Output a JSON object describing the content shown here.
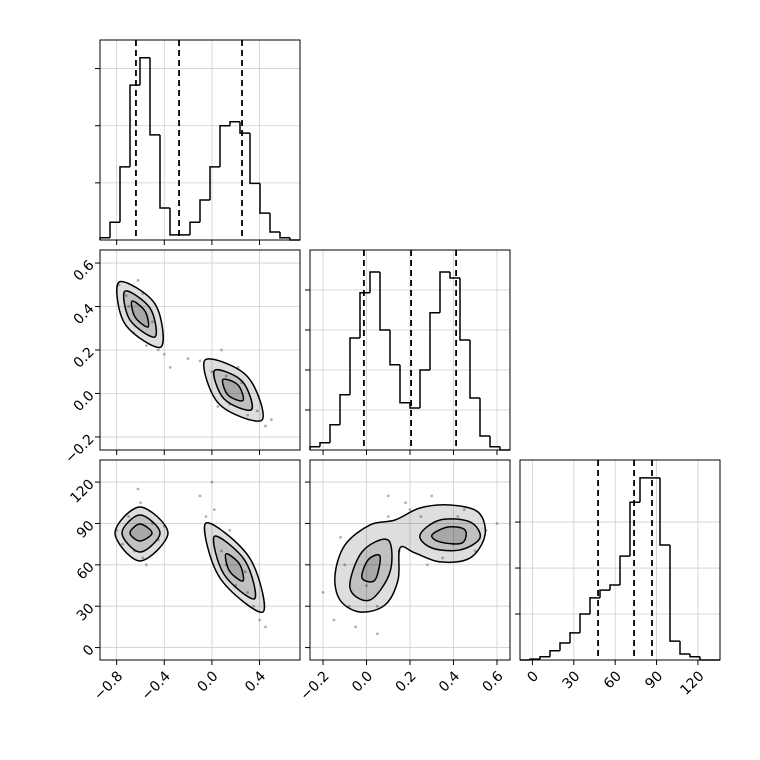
{
  "chart_data": [
    {
      "type": "histogram",
      "color": "#000000",
      "grid": true,
      "show_xtick_labels": false,
      "show_ytick_labels": false,
      "xlim": [
        -0.94,
        0.74
      ],
      "ylim": [
        0,
        3.5
      ],
      "xticks": [
        -0.8,
        -0.4,
        0,
        0.4
      ],
      "yticks": [
        1,
        2,
        3
      ],
      "bins": [
        -0.94,
        -0.856,
        -0.772,
        -0.688,
        -0.604,
        -0.52,
        -0.436,
        -0.352,
        -0.268,
        -0.184,
        -0.1,
        -0.016,
        0.068,
        0.152,
        0.236,
        0.32,
        0.404,
        0.488,
        0.572,
        0.656,
        0.74
      ],
      "counts": [
        0.04,
        0.31,
        1.28,
        2.71,
        3.19,
        1.84,
        0.56,
        0.09,
        0.09,
        0.31,
        0.7,
        1.28,
        2.0,
        2.07,
        1.87,
        0.99,
        0.47,
        0.14,
        0.04,
        0.0
      ],
      "quantiles": [
        -0.638,
        -0.276,
        0.253
      ]
    },
    {
      "type": "scatter",
      "color": "#000000",
      "grid": true,
      "show_xtick_labels": false,
      "show_ytick_labels": true,
      "xlim": [
        -0.94,
        0.74
      ],
      "ylim": [
        -0.26,
        0.66
      ],
      "xticks": [
        -0.8,
        -0.4,
        0,
        0.4
      ],
      "yticks": [
        {
          "value": -0.2,
          "label": "−0.2"
        },
        {
          "value": 0,
          "label": "0.0"
        },
        0.2,
        0.4,
        0.6
      ],
      "x": [
        -0.78,
        -0.72,
        -0.66,
        -0.62,
        -0.55,
        -0.5,
        -0.45,
        -0.7,
        -0.58,
        -0.4,
        -0.35,
        -0.1,
        0.0,
        0.08,
        0.15,
        0.22,
        0.3,
        0.38,
        0.45,
        0.05,
        0.25,
        0.5,
        -0.2,
        0.12
      ],
      "y": [
        0.5,
        0.45,
        0.28,
        0.52,
        0.22,
        0.33,
        0.2,
        0.4,
        0.46,
        0.18,
        0.12,
        0.15,
        0.1,
        0.2,
        -0.05,
        0.12,
        -0.1,
        -0.08,
        -0.15,
        -0.06,
        0.05,
        -0.12,
        0.16,
        0.08
      ],
      "contours": [
        {
          "x": [
            -0.78,
            -0.478,
            -0.428,
            -0.73
          ],
          "y": [
            0.513,
            0.412,
            0.214,
            0.32
          ]
        },
        {
          "x": [
            -0.73,
            -0.52,
            -0.478,
            -0.688
          ],
          "y": [
            0.471,
            0.393,
            0.26,
            0.338
          ]
        },
        {
          "x": [
            -0.671,
            -0.562,
            -0.537,
            -0.646
          ],
          "y": [
            0.425,
            0.379,
            0.306,
            0.352
          ]
        },
        {
          "x": [
            -0.058,
            0.295,
            0.421,
            0.06
          ],
          "y": [
            0.154,
            0.08,
            -0.122,
            -0.048
          ]
        },
        {
          "x": [
            0.022,
            0.253,
            0.333,
            0.102
          ],
          "y": [
            0.106,
            0.057,
            -0.074,
            -0.025
          ]
        },
        {
          "x": [
            0.093,
            0.219,
            0.261,
            0.135
          ],
          "y": [
            0.064,
            0.039,
            -0.032,
            -0.007
          ]
        }
      ]
    },
    {
      "type": "histogram",
      "color": "#000000",
      "grid": true,
      "show_xtick_labels": false,
      "show_ytick_labels": false,
      "xlim": [
        -0.26,
        0.66
      ],
      "ylim": [
        0,
        5
      ],
      "xticks": [
        -0.2,
        0,
        0.2,
        0.4,
        0.6
      ],
      "yticks": [
        1,
        2,
        3,
        4
      ],
      "bins": [
        -0.26,
        -0.214,
        -0.168,
        -0.122,
        -0.076,
        -0.03,
        0.016,
        0.062,
        0.108,
        0.154,
        0.2,
        0.246,
        0.292,
        0.338,
        0.384,
        0.43,
        0.476,
        0.522,
        0.568,
        0.614,
        0.66
      ],
      "counts": [
        0.08,
        0.18,
        0.63,
        1.38,
        2.8,
        3.93,
        4.45,
        3.0,
        2.13,
        1.18,
        1.05,
        2.0,
        3.43,
        4.45,
        4.3,
        2.75,
        1.3,
        0.35,
        0.08,
        0.0
      ],
      "quantiles": [
        -0.012,
        0.205,
        0.412
      ]
    },
    {
      "type": "scatter",
      "color": "#000000",
      "grid": true,
      "show_xtick_labels": true,
      "show_ytick_labels": true,
      "xlim": [
        -0.94,
        0.74
      ],
      "ylim": [
        -9,
        136
      ],
      "xticks": [
        {
          "value": -0.8,
          "label": "−0.8"
        },
        {
          "value": -0.4,
          "label": "−0.4"
        },
        {
          "value": 0,
          "label": "0.0"
        },
        0.4
      ],
      "yticks": [
        0,
        30,
        60,
        90,
        120
      ],
      "x": [
        -0.8,
        -0.75,
        -0.7,
        -0.65,
        -0.6,
        -0.55,
        -0.5,
        -0.45,
        -0.4,
        -0.62,
        -0.58,
        -0.1,
        -0.05,
        0.02,
        0.08,
        0.15,
        0.2,
        0.28,
        0.35,
        0.4,
        0.45,
        0.12,
        0.3,
        0.0
      ],
      "y": [
        85,
        75,
        95,
        70,
        105,
        60,
        90,
        78,
        88,
        115,
        65,
        110,
        95,
        100,
        70,
        85,
        45,
        55,
        30,
        20,
        15,
        60,
        40,
        120
      ],
      "contours": [
        {
          "x": [
            -0.814,
            -0.604,
            -0.369,
            -0.604
          ],
          "y": [
            83.1,
            101.9,
            83.1,
            62.8
          ]
        },
        {
          "x": [
            -0.755,
            -0.604,
            -0.436,
            -0.604
          ],
          "y": [
            83.1,
            96.1,
            83.1,
            69.3
          ]
        },
        {
          "x": [
            -0.688,
            -0.604,
            -0.503,
            -0.604
          ],
          "y": [
            83.1,
            89.6,
            83.1,
            77.3
          ]
        },
        {
          "x": [
            -0.05,
            0.316,
            0.429,
            0.064
          ],
          "y": [
            90.3,
            65.1,
            25.8,
            51.0
          ]
        },
        {
          "x": [
            0.022,
            0.278,
            0.358,
            0.102
          ],
          "y": [
            80.7,
            63.0,
            35.4,
            53.1
          ]
        },
        {
          "x": [
            0.118,
            0.232,
            0.261,
            0.148
          ],
          "y": [
            67.9,
            60.6,
            48.3,
            55.5
          ]
        }
      ]
    },
    {
      "type": "scatter",
      "color": "#000000",
      "grid": true,
      "show_xtick_labels": true,
      "show_ytick_labels": false,
      "xlim": [
        -0.26,
        0.66
      ],
      "ylim": [
        -9,
        136
      ],
      "xticks": [
        {
          "value": -0.2,
          "label": "−0.2"
        },
        {
          "value": 0,
          "label": "0.0"
        },
        0.2,
        0.4,
        0.6
      ],
      "yticks": [
        0,
        30,
        60,
        90,
        120
      ],
      "x": [
        -0.2,
        -0.15,
        -0.1,
        -0.05,
        0.0,
        0.05,
        0.1,
        0.15,
        -0.12,
        0.2,
        0.25,
        0.3,
        0.35,
        0.4,
        0.45,
        0.5,
        0.55,
        0.28,
        0.42,
        0.05,
        -0.08,
        0.18,
        0.6,
        0.1
      ],
      "y": [
        40,
        20,
        60,
        15,
        45,
        30,
        95,
        70,
        80,
        100,
        95,
        110,
        65,
        75,
        100,
        70,
        85,
        60,
        95,
        10,
        30,
        105,
        90,
        110
      ],
      "contours": [
        {
          "x": [
            -0.122,
            -0.145,
            -0.099,
            0.016,
            0.131,
            0.246,
            0.384,
            0.513,
            0.545,
            0.476,
            0.338,
            0.223,
            0.154,
            0.145,
            0.085,
            -0.03
          ],
          "y": [
            34.5,
            52.6,
            74.4,
            88.9,
            92.5,
            101.2,
            103.4,
            98.3,
            81.6,
            64.9,
            62.1,
            68.6,
            72.2,
            49.0,
            30.9,
            25.8
          ]
        },
        {
          "x": [
            -0.076,
            -0.021,
            0.099,
            0.108,
            0.016
          ],
          "y": [
            43.2,
            69.3,
            78.0,
            54.8,
            34.5
          ]
        },
        {
          "x": [
            -0.021,
            0.007,
            0.062,
            0.039
          ],
          "y": [
            50.5,
            63.5,
            66.4,
            49.0
          ]
        },
        {
          "x": [
            0.246,
            0.338,
            0.476,
            0.522,
            0.43,
            0.301
          ],
          "y": [
            81.6,
            92.5,
            91.1,
            79.5,
            70.8,
            72.2
          ]
        },
        {
          "x": [
            0.301,
            0.375,
            0.453,
            0.439,
            0.338
          ],
          "y": [
            81.6,
            87.4,
            85.3,
            75.8,
            76.6
          ]
        }
      ]
    },
    {
      "type": "histogram",
      "color": "#000000",
      "grid": true,
      "show_xtick_labels": true,
      "show_ytick_labels": false,
      "xlim": [
        -9,
        136
      ],
      "ylim": [
        0,
        4.35
      ],
      "xticks": [
        0,
        30,
        60,
        90,
        120
      ],
      "yticks": [
        1,
        2,
        3
      ],
      "bins": [
        -9,
        -1.75,
        5.5,
        12.75,
        20,
        27.25,
        34.5,
        41.75,
        49,
        56.25,
        63.5,
        70.75,
        78,
        85.25,
        92.5,
        99.75,
        107,
        114.25,
        121.5,
        128.75,
        136
      ],
      "counts": [
        0,
        0.02,
        0.07,
        0.2,
        0.37,
        0.59,
        1.0,
        1.35,
        1.52,
        1.63,
        2.26,
        3.43,
        3.96,
        3.96,
        2.5,
        0.41,
        0.13,
        0.07,
        0,
        0
      ],
      "quantiles": [
        47.6,
        73.7,
        86.7
      ]
    }
  ]
}
